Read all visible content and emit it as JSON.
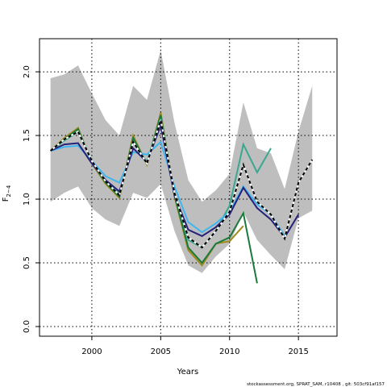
{
  "chart_data": {
    "type": "line",
    "x_label": "Years",
    "y_label": "F",
    "y_label_subscript": "2−4",
    "footer": "stockassessment.org, SPRAT_SAM, r10408 , git: 503cf91af157",
    "x": [
      1997,
      1998,
      1999,
      2000,
      2001,
      2002,
      2003,
      2004,
      2005,
      2006,
      2007,
      2008,
      2009,
      2010,
      2011,
      2012,
      2013,
      2014,
      2015,
      2016
    ],
    "xlim": [
      1996.2,
      2017.8
    ],
    "xticks": [
      2000,
      2005,
      2010,
      2015
    ],
    "ylim": [
      -0.076,
      2.26
    ],
    "yticks": [
      {
        "value": 0,
        "label": "0.0"
      },
      {
        "value": 0.5,
        "label": "0.5"
      },
      {
        "value": 1,
        "label": "1.0"
      },
      {
        "value": 1.5,
        "label": "1.5"
      },
      {
        "value": 2,
        "label": "2.0"
      }
    ],
    "grid": true,
    "band": {
      "color": "#bebebe",
      "upper": [
        1.95,
        1.98,
        2.05,
        1.83,
        1.62,
        1.5,
        1.89,
        1.78,
        2.17,
        1.6,
        1.15,
        0.98,
        1.07,
        1.2,
        1.76,
        1.4,
        1.36,
        1.08,
        1.53,
        1.89
      ],
      "lower": [
        0.98,
        1.05,
        1.1,
        0.93,
        0.84,
        0.79,
        1.05,
        1.01,
        1.12,
        0.75,
        0.48,
        0.42,
        0.55,
        0.65,
        0.9,
        0.68,
        0.56,
        0.45,
        0.85,
        0.91
      ]
    },
    "series": [
      {
        "color": "#a08a1e",
        "dashed": false,
        "values": [
          1.38,
          1.48,
          1.56,
          1.28,
          1.12,
          1.01,
          1.5,
          1.27,
          1.68,
          1.02,
          0.6,
          0.48,
          0.65,
          0.67,
          0.79,
          null,
          null,
          null,
          null,
          null
        ]
      },
      {
        "color": "#1b7a3a",
        "dashed": false,
        "values": [
          1.38,
          1.47,
          1.55,
          1.29,
          1.13,
          1.02,
          1.48,
          1.28,
          1.66,
          1.03,
          0.62,
          0.5,
          0.65,
          0.7,
          0.89,
          0.34,
          null,
          null,
          null,
          null
        ]
      },
      {
        "color": "#3aa88f",
        "dashed": false,
        "values": [
          1.38,
          1.46,
          1.53,
          1.3,
          1.14,
          1.04,
          1.45,
          1.29,
          1.63,
          1.05,
          0.68,
          0.62,
          0.75,
          0.95,
          1.43,
          1.21,
          1.4,
          null,
          null,
          null
        ]
      },
      {
        "color": "#3fb6f0",
        "dashed": false,
        "values": [
          1.38,
          1.41,
          1.42,
          1.3,
          1.18,
          1.13,
          1.37,
          1.35,
          1.45,
          1.1,
          0.82,
          0.74,
          0.81,
          0.9,
          1.1,
          0.96,
          0.88,
          0.71,
          null,
          null
        ]
      },
      {
        "color": "#25207a",
        "dashed": false,
        "values": [
          1.38,
          1.43,
          1.44,
          1.28,
          1.15,
          1.06,
          1.4,
          1.29,
          1.58,
          1.03,
          0.76,
          0.71,
          0.78,
          0.88,
          1.09,
          0.93,
          0.84,
          0.7,
          0.88,
          null
        ]
      },
      {
        "color": "#000000",
        "dashed": true,
        "values": [
          1.38,
          1.47,
          1.53,
          1.3,
          1.14,
          1.03,
          1.45,
          1.28,
          1.62,
          1.05,
          0.7,
          0.62,
          0.75,
          0.9,
          1.27,
          0.98,
          0.88,
          0.69,
          1.13,
          1.31
        ]
      }
    ]
  }
}
